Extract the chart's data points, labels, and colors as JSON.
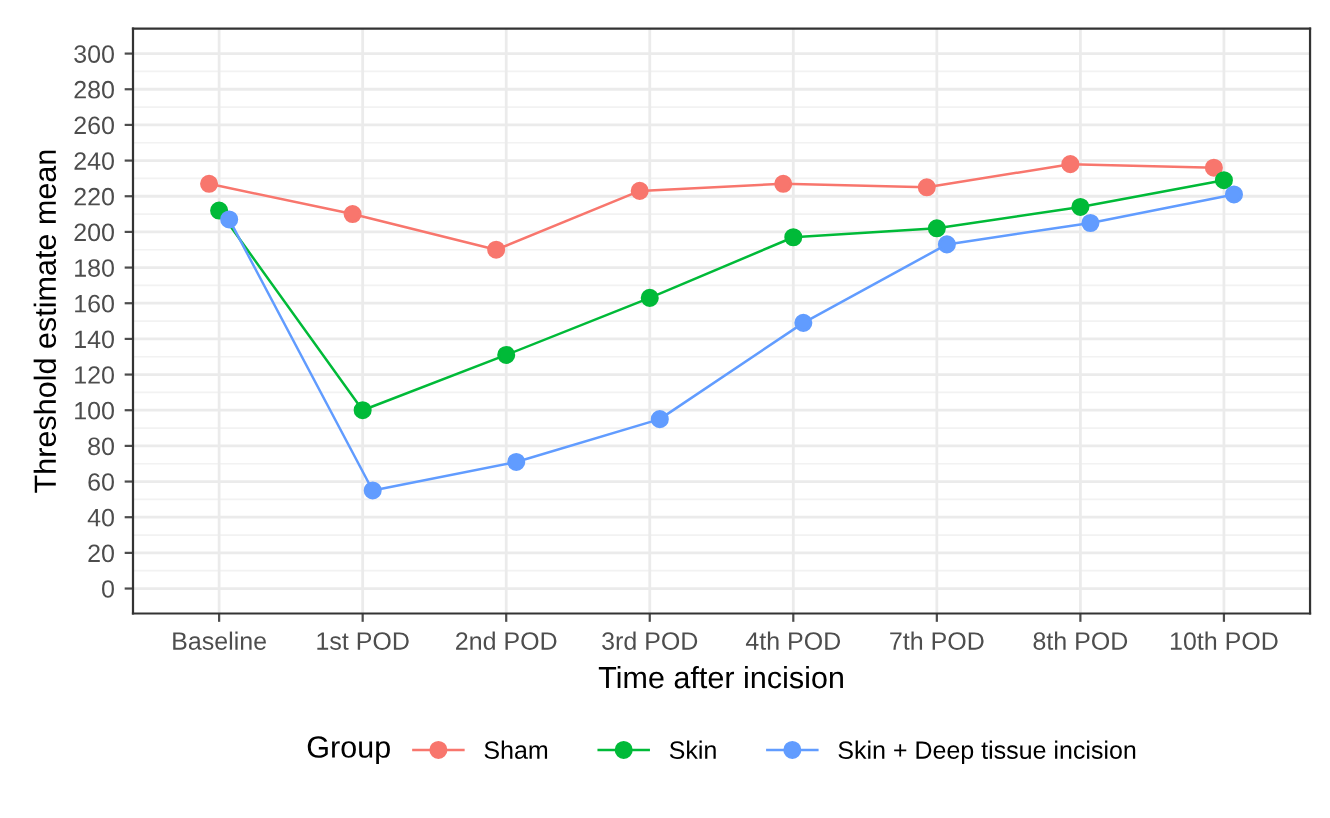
{
  "chart_data": {
    "type": "line",
    "xlabel": "Time after incision",
    "ylabel": "Threshold estimate mean",
    "legend_title": "Group",
    "categories": [
      "Baseline",
      "1st POD",
      "2nd POD",
      "3rd POD",
      "4th POD",
      "7th POD",
      "8th POD",
      "10th POD"
    ],
    "series": [
      {
        "name": "Sham",
        "color": "#f8766d",
        "values": [
          227,
          210,
          190,
          223,
          227,
          225,
          238,
          236
        ]
      },
      {
        "name": "Skin",
        "color": "#00ba38",
        "values": [
          212,
          100,
          131,
          163,
          197,
          202,
          214,
          229
        ]
      },
      {
        "name": "Skin + Deep tissue incision",
        "color": "#619cff",
        "values": [
          207,
          55,
          71,
          95,
          149,
          193,
          205,
          221
        ]
      }
    ],
    "ylim": [
      -14,
      314
    ],
    "yticks": [
      0,
      20,
      40,
      60,
      80,
      100,
      120,
      140,
      160,
      180,
      200,
      220,
      240,
      260,
      280,
      300
    ],
    "grid": true,
    "legend": "bottom",
    "marker": "circle",
    "line_style": "solid"
  }
}
